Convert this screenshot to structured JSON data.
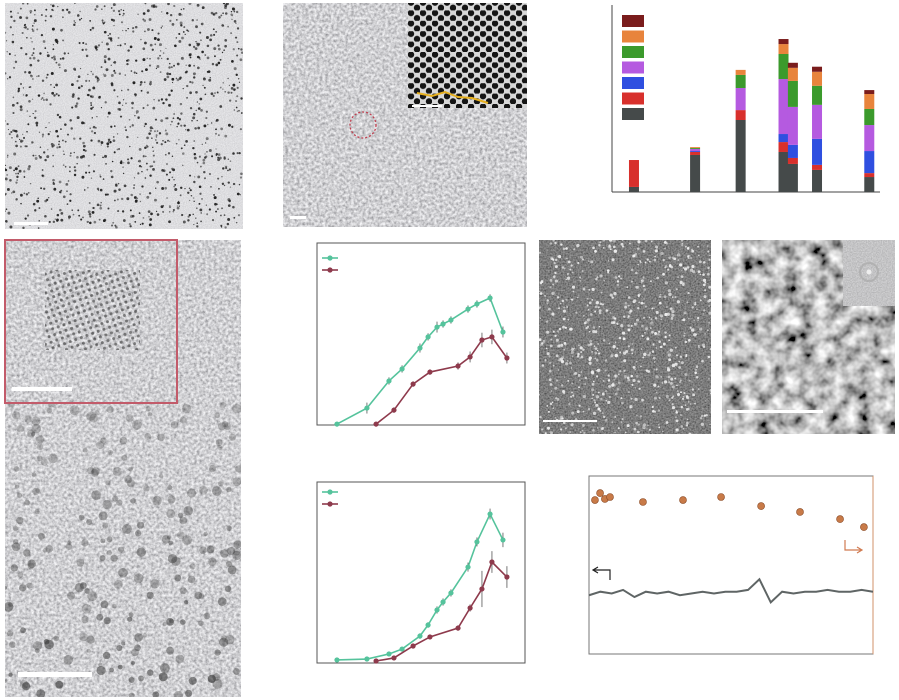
{
  "chart_data": [
    {
      "type": "bar",
      "stacked": true,
      "categories": [
        null,
        null,
        null,
        null,
        null,
        null,
        null
      ],
      "x": [
        8.2,
        31,
        48,
        64,
        67.5,
        76.5,
        96
      ],
      "xlim": [
        0,
        100
      ],
      "ylim": [
        0,
        100
      ],
      "series": [
        {
          "color": "#454a4a",
          "values": [
            2.7,
            19.8,
            38.5,
            21.4,
            15,
            11.8,
            8
          ]
        },
        {
          "color": "#d8302c",
          "values": [
            14.4,
            1.6,
            5.3,
            5.3,
            3.2,
            2.7,
            2.1
          ]
        },
        {
          "color": "#2f4fe0",
          "values": [
            0,
            0.5,
            0,
            4.3,
            7,
            13.9,
            11.8
          ]
        },
        {
          "color": "#b55ae0",
          "values": [
            0,
            1.1,
            11.8,
            29.4,
            20.3,
            18.2,
            13.9
          ]
        },
        {
          "color": "#3b9a2c",
          "values": [
            0,
            0.5,
            7,
            13.4,
            13.9,
            10.2,
            8.6
          ]
        },
        {
          "color": "#e8843c",
          "values": [
            0,
            0.5,
            2.7,
            5.3,
            7,
            7.5,
            8
          ]
        },
        {
          "color": "#7a1c1c",
          "values": [
            0,
            0,
            0,
            2.7,
            2.7,
            2.7,
            2.1
          ]
        }
      ]
    },
    {
      "type": "line",
      "xlim": [
        0,
        100
      ],
      "ylim": [
        0,
        100
      ],
      "series": [
        {
          "color": "#55c39c",
          "x": [
            9.6,
            24,
            34.6,
            40.9,
            49.5,
            53.4,
            57.7,
            60.6,
            64.4,
            72.6,
            76.9,
            83.2,
            89.4
          ],
          "values": [
            0.5,
            9.3,
            24.2,
            30.8,
            42.3,
            48.4,
            53.8,
            55.5,
            57.7,
            63.7,
            66.5,
            69.8,
            51.1
          ],
          "errors": [
            0,
            3,
            2,
            2,
            2.5,
            2,
            3,
            2,
            2,
            2,
            2,
            2,
            3
          ]
        },
        {
          "color": "#8e3a4c",
          "x": [
            28.4,
            37,
            46.2,
            54.3,
            67.8,
            73.6,
            79.3,
            84.1,
            91.3
          ],
          "values": [
            0.5,
            8.2,
            22.5,
            29.1,
            32.4,
            37.4,
            46.7,
            48.4,
            36.8
          ],
          "errors": [
            0,
            1.5,
            1.5,
            1.5,
            2,
            3,
            4,
            4,
            3
          ]
        }
      ]
    },
    {
      "type": "line",
      "xlim": [
        0,
        100
      ],
      "ylim": [
        0,
        100
      ],
      "series": [
        {
          "color": "#55c39c",
          "x": [
            9.6,
            24,
            34.6,
            40.9,
            49.5,
            53.4,
            57.7,
            60.6,
            64.4,
            72.6,
            76.9,
            83.2,
            89.4
          ],
          "values": [
            1.7,
            2.2,
            5,
            7.7,
            14.9,
            21,
            29.3,
            33.7,
            38.7,
            53,
            66.9,
            82.3,
            68
          ],
          "errors": [
            0,
            0.5,
            1,
            1,
            1.5,
            1.5,
            2,
            2,
            2,
            2.5,
            2.5,
            3,
            4
          ]
        },
        {
          "color": "#8e3a4c",
          "x": [
            28.4,
            37,
            46.2,
            54.3,
            67.8,
            73.6,
            79.3,
            84.1,
            91.3
          ],
          "values": [
            1.1,
            2.8,
            9.4,
            14.4,
            19.3,
            30.4,
            40.9,
            55.8,
            47.5
          ],
          "errors": [
            0,
            0.5,
            1,
            1,
            1.5,
            2,
            10,
            6,
            6
          ]
        }
      ]
    },
    {
      "type": "scatter",
      "xlim": [
        0,
        100
      ],
      "ylim": [
        0,
        100
      ],
      "series": [
        {
          "type": "scatter",
          "color": "#c87a48",
          "x": [
            2.1,
            3.9,
            5.6,
            7.4,
            19,
            33.1,
            46.5,
            60.6,
            74.3,
            88.4,
            96.8
          ],
          "values": [
            86.5,
            90.4,
            87.1,
            88.2,
            85.4,
            86.5,
            88.2,
            83.1,
            79.8,
            75.8,
            71.3
          ]
        },
        {
          "type": "line",
          "color": "#5f6565",
          "x": [
            0,
            4,
            8,
            12,
            16,
            20,
            24,
            28,
            32,
            36,
            40,
            44,
            48,
            52,
            56,
            60,
            64,
            68,
            72,
            76,
            80,
            84,
            88,
            92,
            96,
            100
          ],
          "values": [
            33,
            35,
            34,
            36,
            32,
            35,
            34,
            35,
            33,
            34,
            35,
            34,
            35,
            35,
            36,
            42,
            29,
            35,
            34,
            35,
            35,
            36,
            35,
            35,
            36,
            35
          ]
        }
      ]
    }
  ]
}
